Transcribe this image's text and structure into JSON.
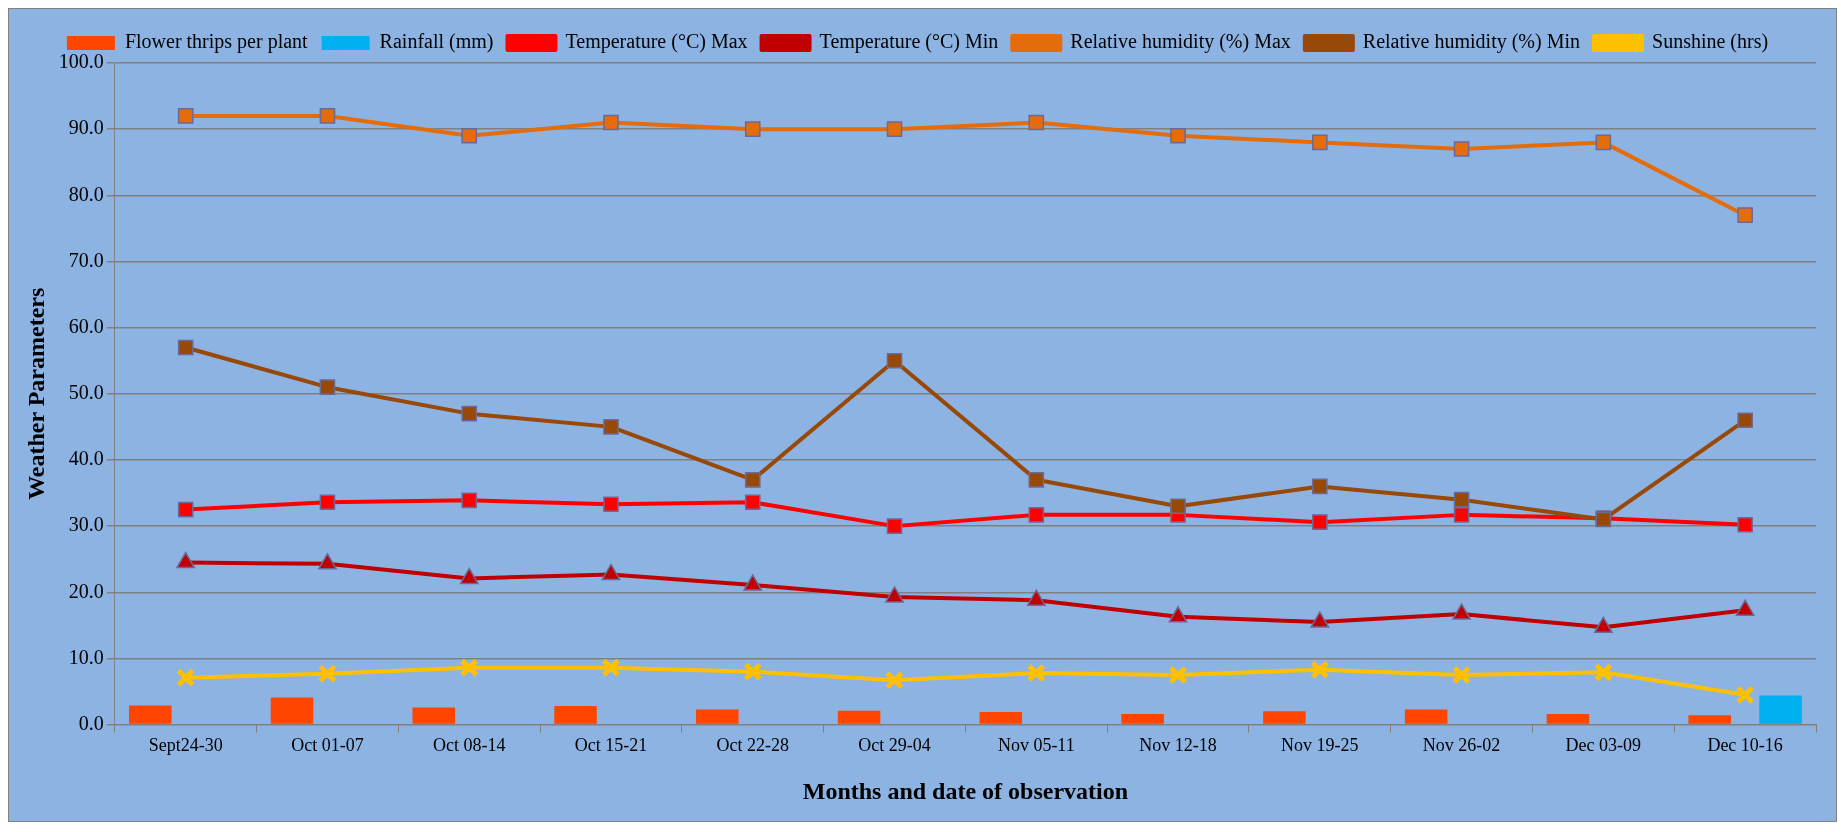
{
  "chart_data": {
    "type": "line",
    "xlabel": "Months and date of observation",
    "ylabel": "Weather Parameters",
    "categories": [
      "Sept24-30",
      "Oct 01-07",
      "Oct 08-14",
      "Oct 15-21",
      "Oct 22-28",
      "Oct 29-04",
      "Nov 05-11",
      "Nov 12-18",
      "Nov 19-25",
      "Nov 26-02",
      "Dec 03-09",
      "Dec 10-16"
    ],
    "series": [
      {
        "name": "Flower thrips per plant",
        "type": "bar",
        "color": "#ff4500",
        "values": [
          2.9,
          4.1,
          2.6,
          2.8,
          2.3,
          2.1,
          1.9,
          1.6,
          2.0,
          2.3,
          1.6,
          1.4
        ]
      },
      {
        "name": "Rainfall (mm)",
        "type": "bar",
        "color": "#00b0f0",
        "values": [
          0,
          0,
          0,
          0,
          0,
          0,
          0,
          0,
          0,
          0,
          0,
          4.4
        ]
      },
      {
        "name": "Temperature (°C) Max",
        "marker": "square",
        "color": "#ff0000",
        "values": [
          32.5,
          33.6,
          33.9,
          33.3,
          33.6,
          30.0,
          31.7,
          31.7,
          30.6,
          31.7,
          31.2,
          30.2
        ]
      },
      {
        "name": "Temperature (°C) Min",
        "marker": "triangle",
        "color": "#c00000",
        "values": [
          24.5,
          24.3,
          22.1,
          22.7,
          21.1,
          19.3,
          18.8,
          16.3,
          15.5,
          16.7,
          14.7,
          17.3
        ]
      },
      {
        "name": "Relative humidity (%) Max",
        "marker": "square",
        "color": "#e46c0a",
        "values": [
          92,
          92,
          89,
          91,
          90,
          90,
          91,
          89,
          88,
          87,
          88,
          77
        ]
      },
      {
        "name": "Relative humidity (%) Min",
        "marker": "square",
        "color": "#984807",
        "values": [
          57,
          51,
          47,
          45,
          37,
          55,
          37,
          33,
          36,
          34,
          31,
          46
        ]
      },
      {
        "name": "Sunshine (hrs)",
        "marker": "cross",
        "color": "#ffc000",
        "values": [
          7.1,
          7.7,
          8.6,
          8.6,
          8.0,
          6.7,
          7.8,
          7.5,
          8.3,
          7.5,
          7.9,
          4.5
        ]
      }
    ],
    "ylim": [
      0,
      100
    ],
    "yticks": [
      {
        "value": 0,
        "label": "0.0"
      },
      {
        "value": 10,
        "label": "10.0"
      },
      {
        "value": 20,
        "label": "20.0"
      },
      {
        "value": 30,
        "label": "30.0"
      },
      {
        "value": 40,
        "label": "40.0"
      },
      {
        "value": 50,
        "label": "50.0"
      },
      {
        "value": 60,
        "label": "60.0"
      },
      {
        "value": 70,
        "label": "70.0"
      },
      {
        "value": 80,
        "label": "80.0"
      },
      {
        "value": 90,
        "label": "90.0"
      },
      {
        "value": 100,
        "label": "100.0"
      }
    ],
    "grid": "y",
    "legend": "top",
    "line_style": "solid"
  }
}
